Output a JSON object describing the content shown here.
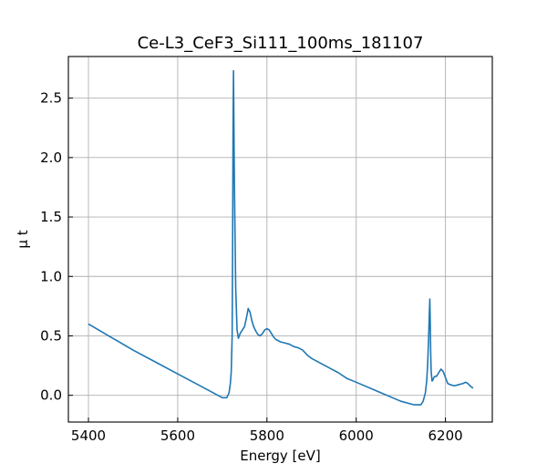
{
  "chart_data": {
    "type": "line",
    "title": "Ce-L3_CeF3_Si111_100ms_181107",
    "xlabel": "Energy [eV]",
    "ylabel": "μ t",
    "xlim": [
      5355,
      6305
    ],
    "ylim": [
      -0.225,
      2.85
    ],
    "xticks": [
      5400,
      5600,
      5800,
      6000,
      6200
    ],
    "xtick_labels": [
      "5400",
      "5600",
      "5800",
      "6000",
      "6200"
    ],
    "yticks": [
      0.0,
      0.5,
      1.0,
      1.5,
      2.0,
      2.5
    ],
    "ytick_labels": [
      "0.0",
      "0.5",
      "1.0",
      "1.5",
      "2.0",
      "2.5"
    ],
    "grid": true,
    "series": [
      {
        "color": "#1f77b4",
        "x": [
          5400,
          5450,
          5500,
          5550,
          5600,
          5650,
          5680,
          5700,
          5710,
          5715,
          5718,
          5720,
          5722,
          5723,
          5724,
          5725,
          5727,
          5730,
          5733,
          5736,
          5740,
          5745,
          5750,
          5755,
          5758,
          5762,
          5766,
          5770,
          5775,
          5780,
          5785,
          5790,
          5795,
          5800,
          5805,
          5810,
          5815,
          5820,
          5830,
          5840,
          5850,
          5860,
          5870,
          5880,
          5890,
          5900,
          5920,
          5940,
          5960,
          5980,
          6000,
          6050,
          6100,
          6130,
          6145,
          6150,
          6155,
          6158,
          6160,
          6162,
          6164,
          6165,
          6166,
          6167,
          6168,
          6170,
          6172,
          6174,
          6177,
          6180,
          6185,
          6190,
          6195,
          6200,
          6205,
          6210,
          6220,
          6230,
          6240,
          6245,
          6250,
          6255,
          6262
        ],
        "y": [
          0.6,
          0.49,
          0.38,
          0.28,
          0.18,
          0.08,
          0.02,
          -0.02,
          -0.02,
          0.02,
          0.1,
          0.2,
          0.5,
          1.2,
          2.2,
          2.73,
          1.8,
          0.9,
          0.55,
          0.48,
          0.52,
          0.55,
          0.58,
          0.67,
          0.73,
          0.7,
          0.63,
          0.58,
          0.54,
          0.51,
          0.5,
          0.52,
          0.55,
          0.56,
          0.55,
          0.52,
          0.49,
          0.47,
          0.45,
          0.44,
          0.43,
          0.41,
          0.4,
          0.38,
          0.34,
          0.31,
          0.27,
          0.23,
          0.19,
          0.14,
          0.11,
          0.03,
          -0.05,
          -0.08,
          -0.08,
          -0.05,
          0.02,
          0.12,
          0.25,
          0.45,
          0.7,
          0.81,
          0.6,
          0.35,
          0.2,
          0.12,
          0.13,
          0.15,
          0.16,
          0.16,
          0.19,
          0.22,
          0.2,
          0.15,
          0.1,
          0.09,
          0.08,
          0.09,
          0.1,
          0.11,
          0.1,
          0.08,
          0.06
        ]
      }
    ]
  }
}
